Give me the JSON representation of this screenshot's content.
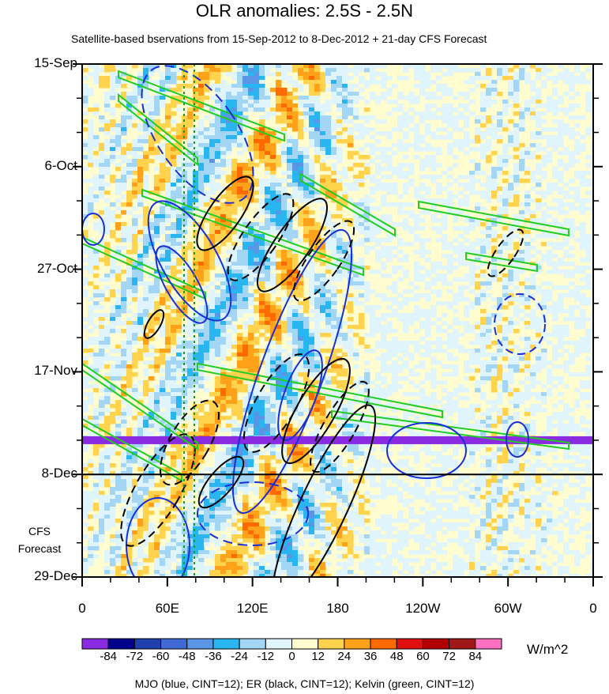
{
  "title": "OLR anomalies: 2.5S - 2.5N",
  "subtitle": "Satellite-based bservations from 15-Sep-2012 to 8-Dec-2012 + 21-day CFS Forecast",
  "forecast_label": [
    "CFS",
    "Forecast"
  ],
  "units": "W/m^2",
  "footnote": "MJO (blue, CINT=12); ER (black, CINT=12); Kelvin (green, CINT=12)",
  "chart_data": {
    "type": "heatmap",
    "title": "OLR anomalies: 2.5S - 2.5N",
    "subtitle": "Satellite-based bservations from 15-Sep-2012 to 8-Dec-2012 + 21-day CFS Forecast",
    "x_axis": {
      "ticks": [
        "0",
        "60E",
        "120E",
        "180",
        "120W",
        "60W",
        "0"
      ],
      "range_deg_east": [
        0,
        360
      ]
    },
    "y_axis": {
      "ticks": [
        "15-Sep",
        "6-Oct",
        "27-Oct",
        "17-Nov",
        "8-Dec",
        "29-Dec"
      ],
      "range": [
        "15-Sep-2012",
        "29-Dec-2012"
      ],
      "direction": "time increases downward"
    },
    "observation_end": "8-Dec",
    "colorbar": {
      "units": "W/m^2",
      "labels": [
        "-84",
        "-72",
        "-60",
        "-48",
        "-36",
        "-24",
        "-12",
        "0",
        "12",
        "24",
        "36",
        "48",
        "60",
        "72",
        "84"
      ],
      "colors": [
        "#8a2be2",
        "#00008b",
        "#1e3fae",
        "#3f6ad6",
        "#5a95e6",
        "#29b6f0",
        "#a3d6f5",
        "#dff4fb",
        "#fffcd0",
        "#ffd34d",
        "#ffa21a",
        "#ff6a00",
        "#e01010",
        "#b30000",
        "#a01818",
        "#ff70c0"
      ]
    },
    "overlays": [
      {
        "name": "MJO",
        "color": "blue",
        "cint": 12
      },
      {
        "name": "ER",
        "color": "black",
        "cint": 12
      },
      {
        "name": "Kelvin",
        "color": "green",
        "cint": 12
      }
    ]
  }
}
